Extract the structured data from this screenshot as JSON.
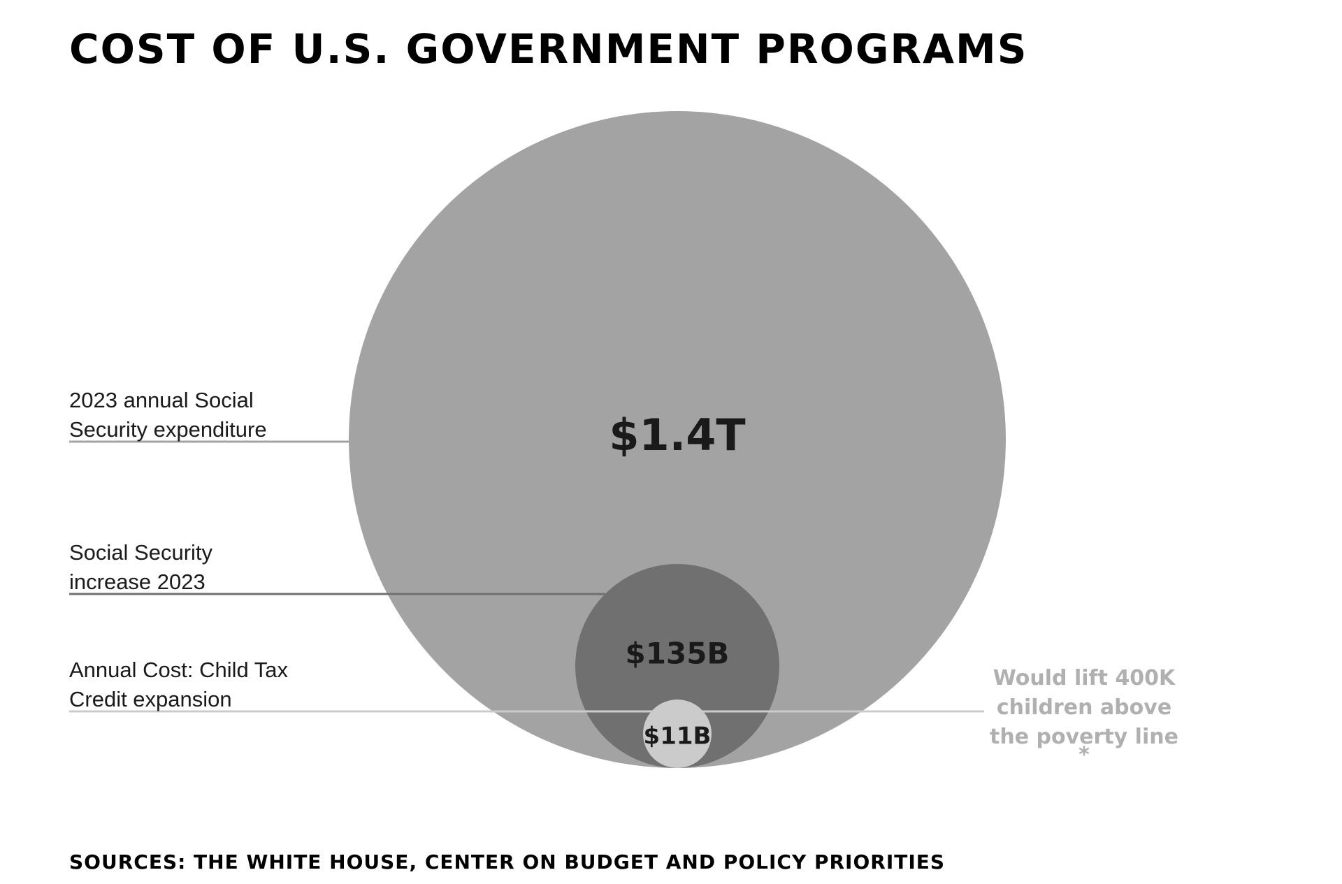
{
  "title": "COST OF U.S. GOVERNMENT PROGRAMS",
  "source": "SOURCES: THE WHITE HOUSE, CENTER ON BUDGET AND POLICY PRIORITIES",
  "chart_data": {
    "type": "nested-bubble",
    "units": "USD",
    "items": [
      {
        "label_lines": [
          "2023 annual Social",
          "Security expenditure"
        ],
        "value": 1400000000000,
        "value_label": "$1.4T",
        "color": "#a3a3a3",
        "line_color": "#a3a3a3"
      },
      {
        "label_lines": [
          "Social Security",
          "increase 2023"
        ],
        "value": 135000000000,
        "value_label": "$135B",
        "color": "#707070",
        "line_color": "#707070"
      },
      {
        "label_lines": [
          "Annual Cost: Child Tax",
          "Credit expansion"
        ],
        "value": 11000000000,
        "value_label": "$11B",
        "color": "#cbcbcb",
        "line_color": "#cbcbcb"
      }
    ],
    "annotation": {
      "lines": [
        "Would lift 400K",
        "children above",
        "the poverty line"
      ],
      "marker": "*",
      "color": "#b0b0b0"
    }
  }
}
